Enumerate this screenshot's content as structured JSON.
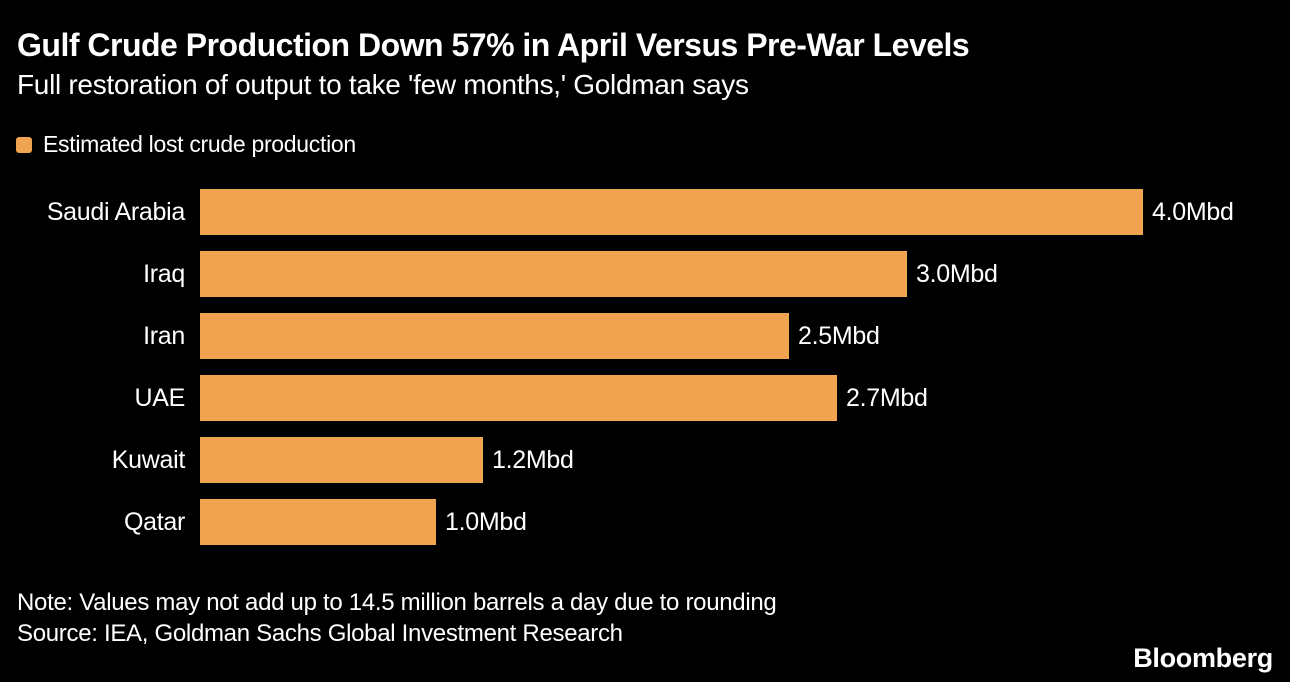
{
  "chart_data": {
    "type": "bar",
    "orientation": "horizontal",
    "title": "Gulf Crude Production Down 57% in April Versus Pre-War Levels",
    "subtitle": "Full restoration of output to take 'few months,' Goldman says",
    "legend": [
      {
        "label": "Estimated lost crude production",
        "color": "#f0a450"
      }
    ],
    "categories": [
      "Saudi Arabia",
      "Iraq",
      "Iran",
      "UAE",
      "Kuwait",
      "Qatar"
    ],
    "values": [
      4.0,
      3.0,
      2.5,
      2.7,
      1.2,
      1.0
    ],
    "value_labels": [
      "4.0Mbd",
      "3.0Mbd",
      "2.5Mbd",
      "2.7Mbd",
      "1.2Mbd",
      "1.0Mbd"
    ],
    "unit": "Mbd",
    "xlim": [
      0,
      4.0
    ],
    "grid": false,
    "bar_color": "#f0a450",
    "background_color": "#000000",
    "text_color": "#ffffff",
    "note": "Note: Values may not add up to 14.5 million barrels a day due to rounding",
    "source": "Source: IEA, Goldman Sachs Global Investment Research",
    "brand": "Bloomberg"
  }
}
